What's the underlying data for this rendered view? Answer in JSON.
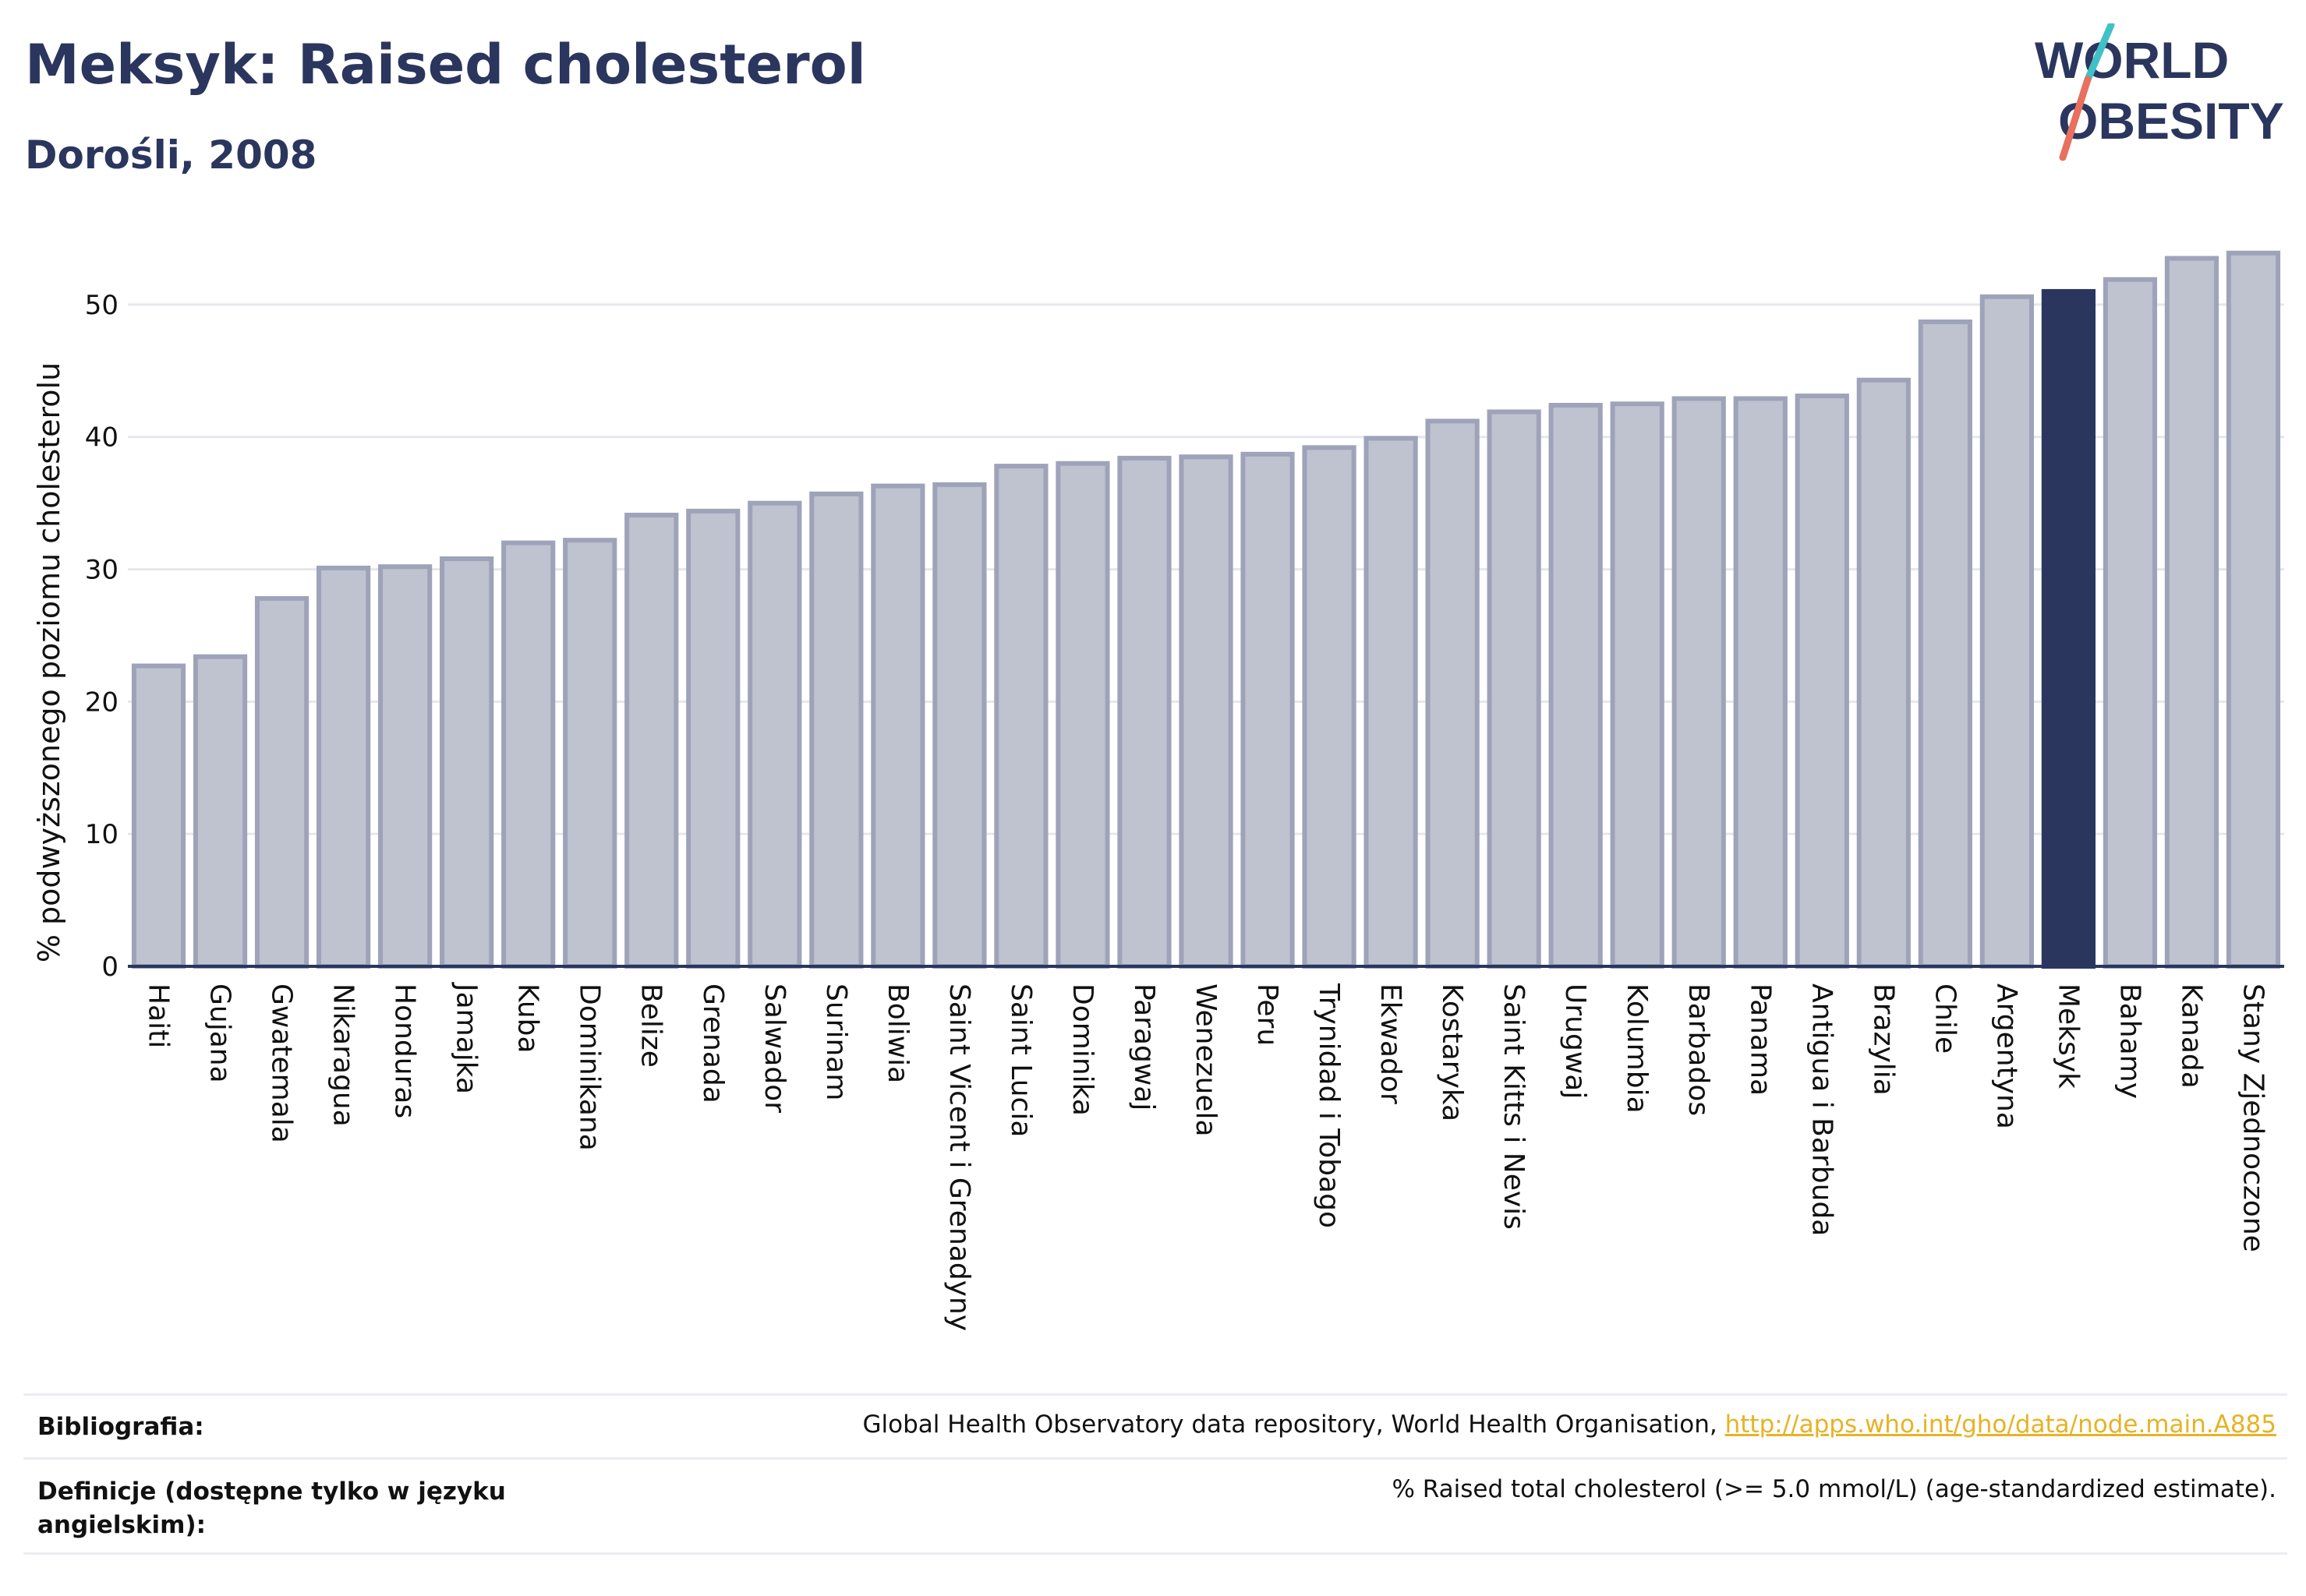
{
  "header": {
    "title": "Meksyk: Raised cholesterol",
    "subtitle": "Dorośli, 2008",
    "logo_line1": "WORLD",
    "logo_line2": "OBESITY"
  },
  "colors": {
    "bar": "#bfc2cf",
    "bar_edge": "#9ea3b9",
    "highlight": "#2b365e",
    "text": "#2b365e",
    "grid": "#e6e7ec",
    "link": "#e6b325",
    "logo_teal": "#40c1c7",
    "logo_coral": "#e8705e"
  },
  "chart_data": {
    "type": "bar",
    "ylabel": "% podwyższonego poziomu cholesterolu",
    "ylim": [
      0,
      55
    ],
    "yticks": [
      0,
      10,
      20,
      30,
      40,
      50
    ],
    "grid": true,
    "highlight": "Meksyk",
    "categories": [
      "Haiti",
      "Gujana",
      "Gwatemala",
      "Nikaragua",
      "Honduras",
      "Jamajka",
      "Kuba",
      "Dominikana",
      "Belize",
      "Grenada",
      "Salwador",
      "Surinam",
      "Boliwia",
      "Saint Vicent i Grenadyny",
      "Saint Lucia",
      "Dominika",
      "Paragwaj",
      "Wenezuela",
      "Peru",
      "Trynidad i Tobago",
      "Ekwador",
      "Kostaryka",
      "Saint Kitts i Nevis",
      "Urugwaj",
      "Kolumbia",
      "Barbados",
      "Panama",
      "Antigua i Barbuda",
      "Brazylia",
      "Chile",
      "Argentyna",
      "Meksyk",
      "Bahamy",
      "Kanada",
      "Stany Zjednoczone"
    ],
    "values": [
      22.7,
      23.4,
      27.8,
      30.1,
      30.2,
      30.8,
      32.0,
      32.2,
      34.1,
      34.4,
      35.0,
      35.7,
      36.3,
      36.4,
      37.8,
      38.0,
      38.4,
      38.5,
      38.7,
      39.2,
      39.9,
      41.2,
      41.9,
      42.4,
      42.5,
      42.9,
      42.9,
      43.1,
      44.3,
      48.7,
      50.6,
      51.0,
      51.9,
      53.5,
      53.9
    ]
  },
  "footer": {
    "bibliography_label": "Bibliografia:",
    "bibliography_text": "Global Health Observatory data repository, World Health Organisation, ",
    "bibliography_link": "http://apps.who.int/gho/data/node.main.A885",
    "definitions_label": "Definicje (dostępne tylko w języku angielskim):",
    "definitions_text": "% Raised total cholesterol (>= 5.0 mmol/L) (age-standardized estimate)."
  }
}
